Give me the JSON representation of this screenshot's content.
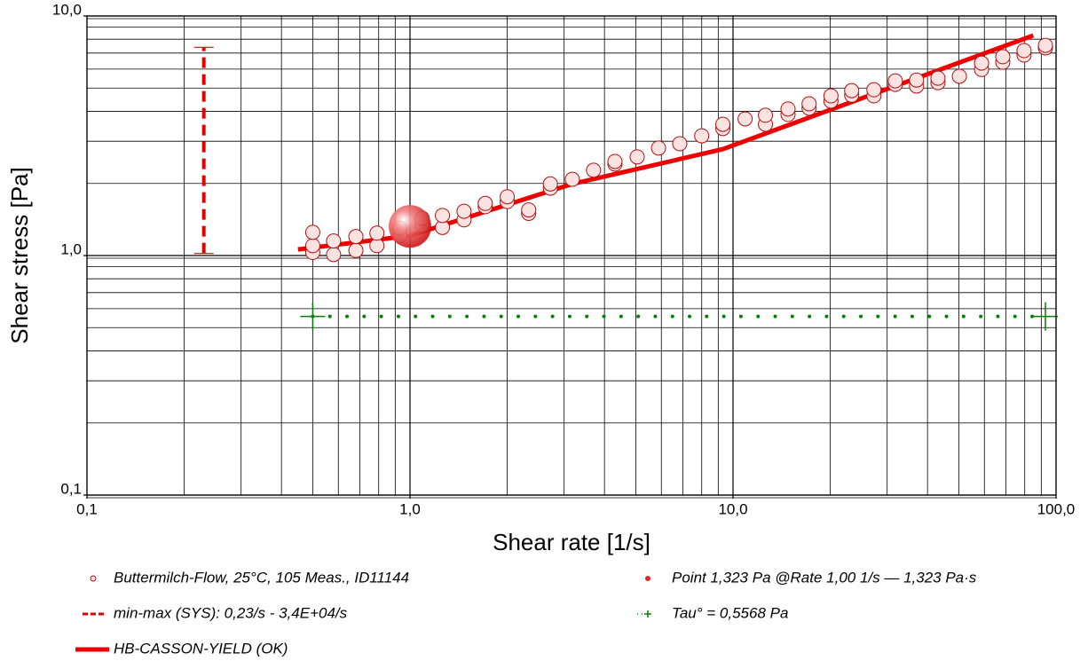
{
  "chart_data": {
    "type": "scatter",
    "xlabel": "Shear rate [1/s]",
    "ylabel": "Shear stress [Pa]",
    "log_x": true,
    "log_y": true,
    "grid": true,
    "xlim": [
      0.1,
      100
    ],
    "ylim": [
      0.1,
      10
    ],
    "xticks": [
      {
        "value": 0.1,
        "label": "0,1"
      },
      {
        "value": 1,
        "label": "1,0"
      },
      {
        "value": 10,
        "label": "10,0"
      },
      {
        "value": 100,
        "label": "100,0"
      }
    ],
    "yticks": [
      {
        "value": 0.1,
        "label": "0,1"
      },
      {
        "value": 1,
        "label": "1,0"
      },
      {
        "value": 10,
        "label": "10,0"
      }
    ],
    "xminorticks": [
      0.2,
      0.3,
      0.4,
      0.5,
      0.6,
      0.7,
      0.8,
      0.9,
      2,
      3,
      4,
      5,
      6,
      7,
      8,
      9,
      20,
      30,
      40,
      50,
      60,
      70,
      80,
      90
    ],
    "yminorticks": [
      0.2,
      0.3,
      0.4,
      0.5,
      0.6,
      0.7,
      0.8,
      0.9,
      2,
      3,
      4,
      5,
      6,
      7,
      8,
      9
    ],
    "series": [
      {
        "name": "Buttermilch-Flow, 25°C, 105 Meas., ID11144",
        "type": "scatter",
        "color": "#b01010",
        "fill": "#fde2e2",
        "x": [
          0.5,
          0.5,
          0.5,
          0.58,
          0.58,
          0.68,
          0.68,
          0.79,
          0.79,
          0.93,
          0.93,
          1.09,
          1.09,
          1.26,
          1.26,
          1.47,
          1.47,
          1.71,
          1.71,
          2.0,
          2.0,
          2.33,
          2.33,
          2.72,
          2.72,
          3.18,
          3.7,
          4.31,
          4.31,
          5.05,
          5.88,
          6.84,
          8.0,
          9.3,
          9.3,
          10.9,
          12.6,
          12.6,
          14.8,
          14.8,
          17.2,
          17.2,
          20.1,
          20.1,
          23.3,
          23.3,
          27.3,
          27.3,
          31.8,
          31.8,
          37.0,
          37.0,
          43.1,
          43.1,
          50.2,
          58.8,
          58.8,
          68.4,
          68.4,
          79.6,
          79.6,
          92.7,
          92.7
        ],
        "values": [
          1.03,
          1.1,
          1.25,
          1.01,
          1.15,
          1.05,
          1.2,
          1.1,
          1.24,
          1.21,
          1.3,
          1.34,
          1.43,
          1.31,
          1.47,
          1.41,
          1.53,
          1.6,
          1.65,
          1.68,
          1.76,
          1.5,
          1.55,
          1.91,
          1.99,
          2.08,
          2.27,
          2.41,
          2.47,
          2.58,
          2.81,
          2.93,
          3.16,
          3.39,
          3.53,
          3.72,
          3.53,
          3.85,
          3.88,
          4.09,
          4.12,
          4.3,
          4.41,
          4.64,
          4.67,
          4.88,
          4.64,
          4.92,
          5.18,
          5.36,
          5.1,
          5.4,
          5.27,
          5.5,
          5.6,
          5.98,
          6.36,
          6.41,
          6.76,
          6.87,
          7.17,
          7.36,
          7.54
        ]
      },
      {
        "name": "Point 1,323 Pa @Rate 1,00 1/s — 1,323 Pa·s",
        "type": "highlight",
        "color": "#e02828",
        "x": [
          1.0
        ],
        "values": [
          1.323
        ]
      },
      {
        "name": "min-max (SYS): 0,23/s - 3,4E+04/s",
        "type": "range",
        "color": "#e00000",
        "x": [
          0.23,
          0.23
        ],
        "values": [
          1.02,
          7.4
        ]
      },
      {
        "name": "Tau° = 0,5568 Pa",
        "type": "hline",
        "color": "#008000",
        "x": [
          0.5,
          92.7
        ],
        "values": [
          0.5568,
          0.5568
        ]
      },
      {
        "name": "HB-CASSON-YIELD (OK)",
        "type": "line",
        "color": "#ee0000",
        "x": [
          0.45,
          1.0,
          3.18,
          9.3,
          85
        ],
        "values": [
          1.06,
          1.21,
          1.99,
          2.78,
          8.29
        ]
      }
    ]
  }
}
